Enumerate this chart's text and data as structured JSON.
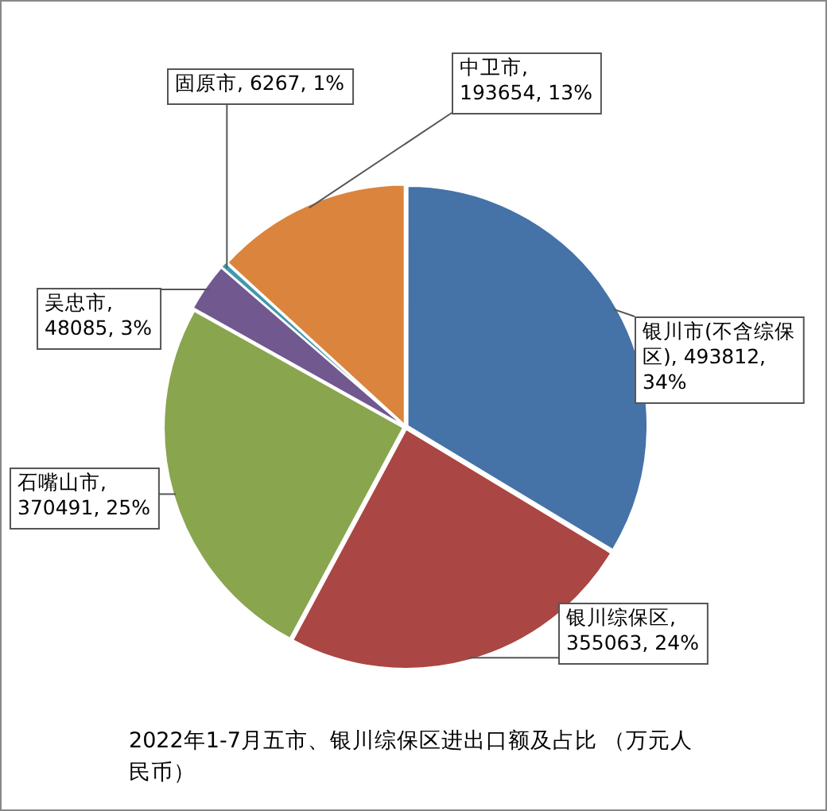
{
  "chart_data": {
    "type": "pie",
    "title": "2022年1-7月五市、银川综保区进出口额及占比 （万元人民币）",
    "categories": [
      "银川市(不含综保区)",
      "银川综保区",
      "石嘴山市",
      "吴忠市",
      "固原市",
      "中卫市"
    ],
    "values": [
      493812,
      355063,
      370491,
      48085,
      6267,
      193654
    ],
    "colors": [
      "#4572a7",
      "#aa4643",
      "#89a54e",
      "#71588f",
      "#4198af",
      "#db843d"
    ],
    "value_labels": [
      ", 493812, 34%",
      ", 355063, 24%",
      ", 370491, 25%",
      ", 48085, 3%",
      ", 6267, 1%",
      ", 193654, 13%"
    ],
    "legend": false
  }
}
